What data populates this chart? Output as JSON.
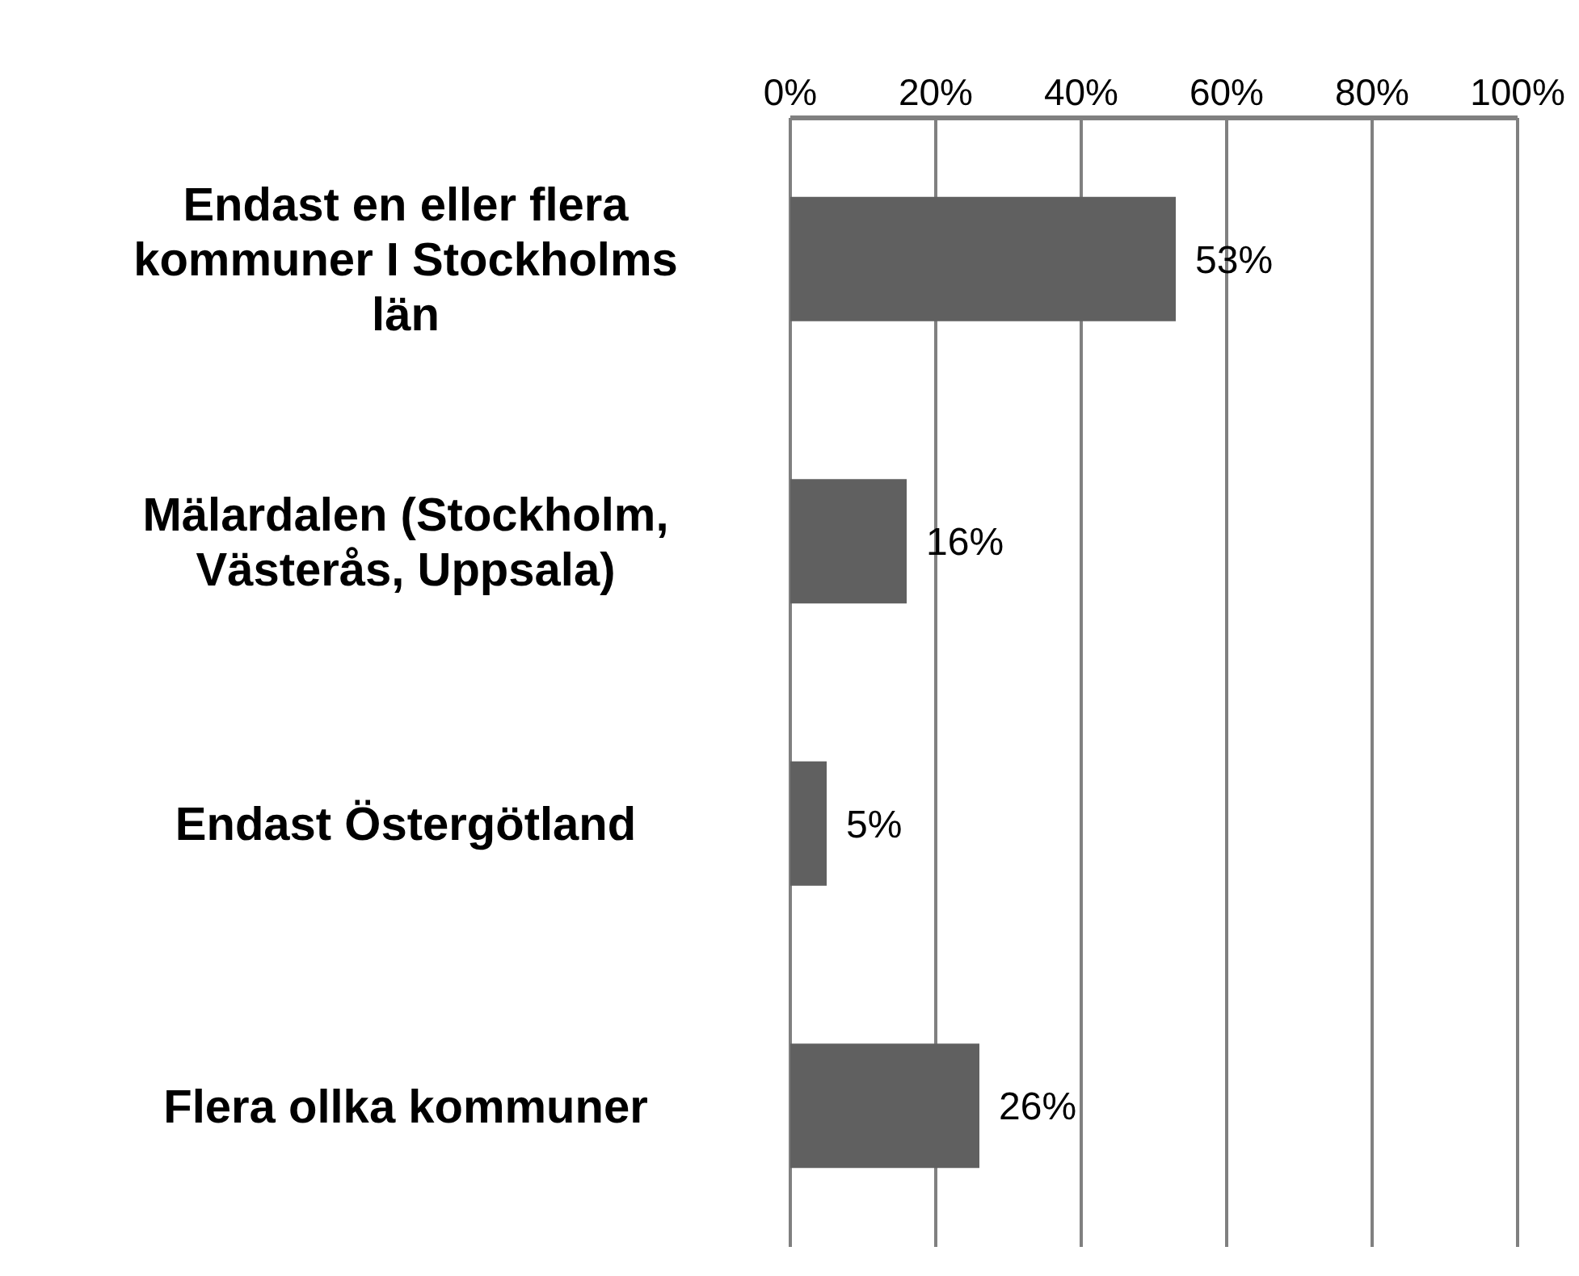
{
  "chart_data": {
    "type": "bar",
    "orientation": "horizontal",
    "categories": [
      "Endast en eller flera kommuner I Stockholms län",
      "Mälardalen (Stockholm, Västerås, Uppsala)",
      "Endast Östergötland",
      "Flera ollka kommuner"
    ],
    "values": [
      53,
      16,
      5,
      26
    ],
    "value_labels": [
      "53%",
      "16%",
      "5%",
      "26%"
    ],
    "color": "#606060",
    "xlim": [
      0,
      100
    ],
    "xticks": [
      {
        "value": 0,
        "label": "0%"
      },
      {
        "value": 20,
        "label": "20%"
      },
      {
        "value": 40,
        "label": "40%"
      },
      {
        "value": 60,
        "label": "60%"
      },
      {
        "value": 80,
        "label": "80%"
      },
      {
        "value": 100,
        "label": "100%"
      }
    ],
    "grid": "x"
  }
}
